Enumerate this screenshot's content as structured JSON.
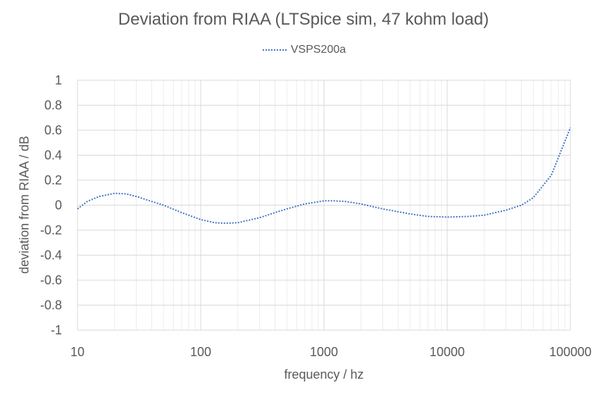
{
  "chart_data": {
    "type": "line",
    "title": "Deviation from RIAA (LTSpice  sim, 47 kohm load)",
    "xlabel": "frequency / hz",
    "ylabel": "deviation from RIAA / dB",
    "x_scale": "log",
    "xlim": [
      10,
      100000
    ],
    "ylim": [
      -1,
      1
    ],
    "x_ticks": [
      "10",
      "100",
      "1000",
      "10000",
      "100000"
    ],
    "y_ticks": [
      "1",
      "0.8",
      "0.6",
      "0.4",
      "0.2",
      "0",
      "-0.2",
      "-0.4",
      "-0.6",
      "-0.8",
      "-1"
    ],
    "grid": true,
    "legend_position": "top-center",
    "series": [
      {
        "name": "VSPS200a",
        "color": "#4472C4",
        "line_style": "dotted",
        "x": [
          10,
          12,
          15,
          20,
          25,
          30,
          40,
          50,
          70,
          100,
          130,
          160,
          200,
          300,
          400,
          500,
          700,
          1000,
          1200,
          1500,
          2000,
          3000,
          5000,
          7000,
          10000,
          15000,
          20000,
          30000,
          40000,
          50000,
          70000,
          100000
        ],
        "values": [
          -0.03,
          0.03,
          0.07,
          0.095,
          0.09,
          0.07,
          0.03,
          0.0,
          -0.06,
          -0.115,
          -0.14,
          -0.145,
          -0.14,
          -0.1,
          -0.06,
          -0.03,
          0.01,
          0.035,
          0.035,
          0.03,
          0.01,
          -0.03,
          -0.07,
          -0.09,
          -0.095,
          -0.09,
          -0.08,
          -0.04,
          0.0,
          0.06,
          0.24,
          0.62
        ]
      }
    ]
  }
}
